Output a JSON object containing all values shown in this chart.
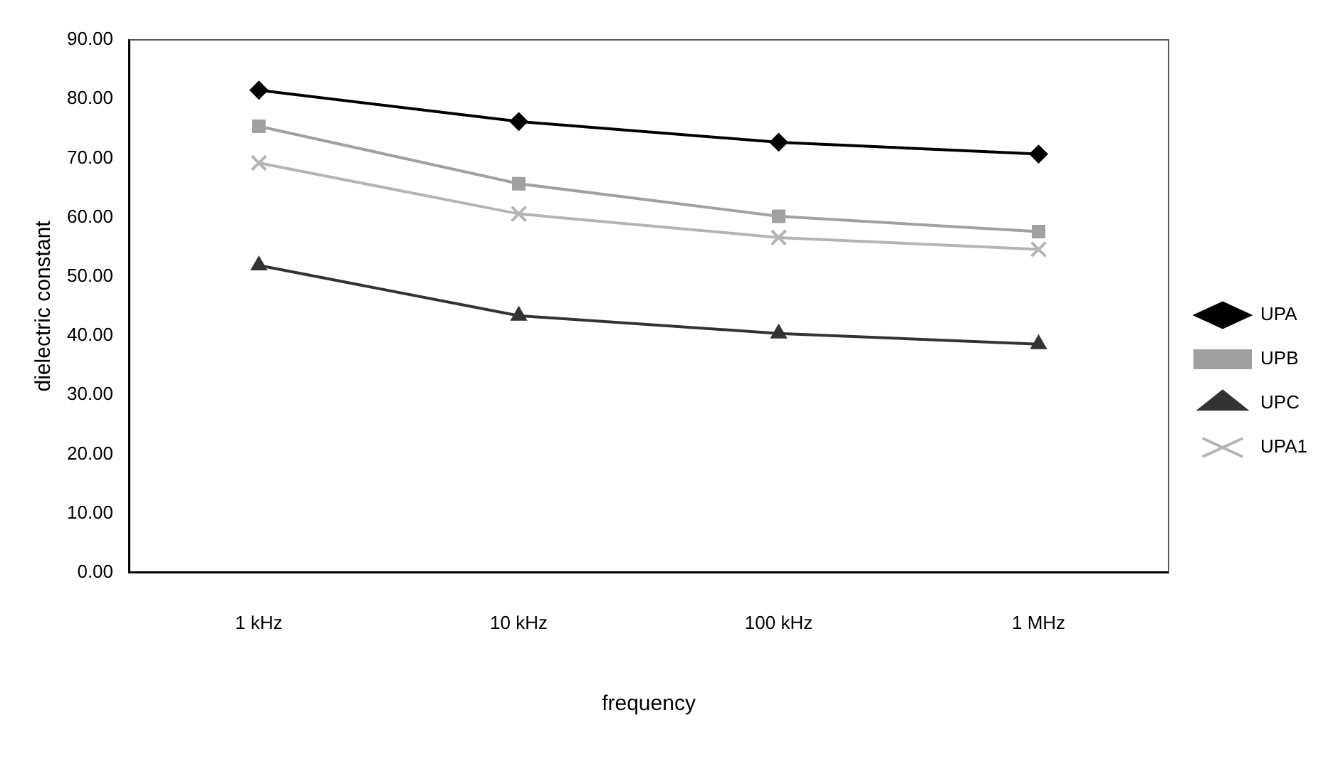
{
  "chart_data": {
    "type": "line",
    "xlabel": "frequency",
    "ylabel": "dielectric constant",
    "categories": [
      "1 kHz",
      "10 kHz",
      "100 kHz",
      "1 MHz"
    ],
    "series": [
      {
        "name": "UPA",
        "color": "#000000",
        "marker": "diamond",
        "values": [
          81.5,
          76.2,
          72.7,
          70.7
        ]
      },
      {
        "name": "UPB",
        "color": "#a0a0a0",
        "marker": "square",
        "values": [
          75.4,
          65.7,
          60.2,
          57.6
        ]
      },
      {
        "name": "UPC",
        "color": "#333333",
        "marker": "triangle",
        "values": [
          51.9,
          43.4,
          40.4,
          38.6
        ]
      },
      {
        "name": "UPA1",
        "color": "#b4b4b4",
        "marker": "cross",
        "values": [
          69.2,
          60.6,
          56.6,
          54.6
        ]
      }
    ],
    "ylim": [
      0,
      90
    ],
    "yticks": [
      {
        "value": 0,
        "label": "0.00"
      },
      {
        "value": 10,
        "label": "10.00"
      },
      {
        "value": 20,
        "label": "20.00"
      },
      {
        "value": 30,
        "label": "30.00"
      },
      {
        "value": 40,
        "label": "40.00"
      },
      {
        "value": 50,
        "label": "50.00"
      },
      {
        "value": 60,
        "label": "60.00"
      },
      {
        "value": 70,
        "label": "70.00"
      },
      {
        "value": 80,
        "label": "80.00"
      },
      {
        "value": 90,
        "label": "90.00"
      }
    ],
    "grid": false,
    "legend": "right"
  }
}
